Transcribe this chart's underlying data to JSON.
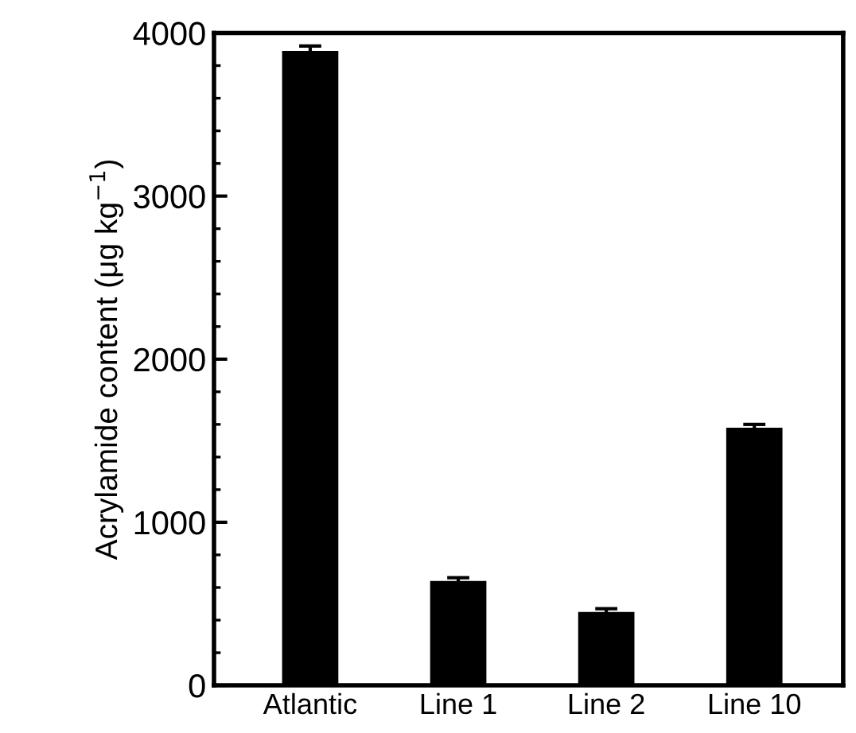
{
  "chart_data": {
    "type": "bar",
    "ylabel": "Acrylamide content (μg kg$^{−1}$)",
    "categories": [
      "Atlantic",
      "Line 1",
      "Line 2",
      "Line 10"
    ],
    "values": [
      3890,
      640,
      450,
      1580
    ],
    "errors": [
      30,
      20,
      20,
      20
    ],
    "color": "#000000",
    "ylim": [
      0,
      4000
    ],
    "yticks": [
      0,
      1000,
      2000,
      3000,
      4000
    ],
    "grid": false
  }
}
